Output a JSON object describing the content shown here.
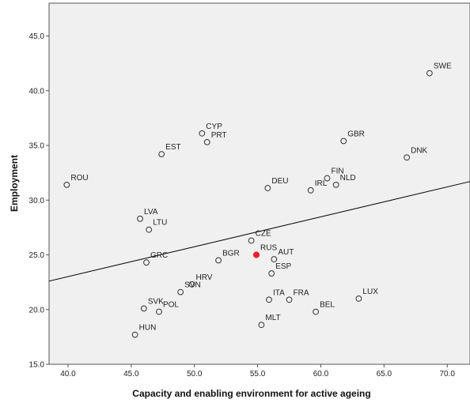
{
  "chart_data": {
    "type": "scatter",
    "xlabel": "Capacity and enabling environment for active ageing",
    "ylabel": "Employment",
    "xlim": [
      38.5,
      71.8
    ],
    "ylim": [
      15.0,
      48.0
    ],
    "x_ticks": [
      40.0,
      45.0,
      50.0,
      55.0,
      60.0,
      65.0,
      70.0
    ],
    "y_ticks": [
      15.0,
      20.0,
      25.0,
      30.0,
      35.0,
      40.0,
      45.0
    ],
    "grid": false,
    "plot_background": "#f0f0f0",
    "marker_color": "#333333",
    "highlight_color": "#e8232d",
    "fit_line": {
      "x": [
        38.5,
        71.8
      ],
      "y": [
        22.6,
        31.7
      ]
    },
    "points": [
      {
        "label": "SWE",
        "x": 68.6,
        "y": 41.6
      },
      {
        "label": "CYP",
        "x": 50.6,
        "y": 36.1
      },
      {
        "label": "PRT",
        "x": 51.0,
        "y": 35.3
      },
      {
        "label": "GBR",
        "x": 61.8,
        "y": 35.4
      },
      {
        "label": "EST",
        "x": 47.4,
        "y": 34.2
      },
      {
        "label": "DNK",
        "x": 66.8,
        "y": 33.9
      },
      {
        "label": "ROU",
        "x": 39.9,
        "y": 31.4
      },
      {
        "label": "FIN",
        "x": 60.5,
        "y": 32.0
      },
      {
        "label": "DEU",
        "x": 55.8,
        "y": 31.1
      },
      {
        "label": "IRL",
        "x": 59.2,
        "y": 30.9
      },
      {
        "label": "NLD",
        "x": 61.2,
        "y": 31.4
      },
      {
        "label": "LVA",
        "x": 45.7,
        "y": 28.3
      },
      {
        "label": "LTU",
        "x": 46.4,
        "y": 27.3
      },
      {
        "label": "CZE",
        "x": 54.5,
        "y": 26.3
      },
      {
        "label": "RUS",
        "x": 54.9,
        "y": 25.0,
        "highlight": true
      },
      {
        "label": "AUT",
        "x": 56.3,
        "y": 24.6
      },
      {
        "label": "BGR",
        "x": 51.9,
        "y": 24.5
      },
      {
        "label": "GRC",
        "x": 46.2,
        "y": 24.3
      },
      {
        "label": "ESP",
        "x": 56.1,
        "y": 23.3
      },
      {
        "label": "HRV",
        "x": 49.8,
        "y": 22.3
      },
      {
        "label": "SVN",
        "x": 48.9,
        "y": 21.6
      },
      {
        "label": "SVK",
        "x": 46.0,
        "y": 20.1
      },
      {
        "label": "POL",
        "x": 47.2,
        "y": 19.8
      },
      {
        "label": "ITA",
        "x": 55.9,
        "y": 20.9
      },
      {
        "label": "FRA",
        "x": 57.5,
        "y": 20.9
      },
      {
        "label": "LUX",
        "x": 63.0,
        "y": 21.0
      },
      {
        "label": "BEL",
        "x": 59.6,
        "y": 19.8
      },
      {
        "label": "MLT",
        "x": 55.3,
        "y": 18.6
      },
      {
        "label": "HUN",
        "x": 45.3,
        "y": 17.7
      }
    ]
  }
}
